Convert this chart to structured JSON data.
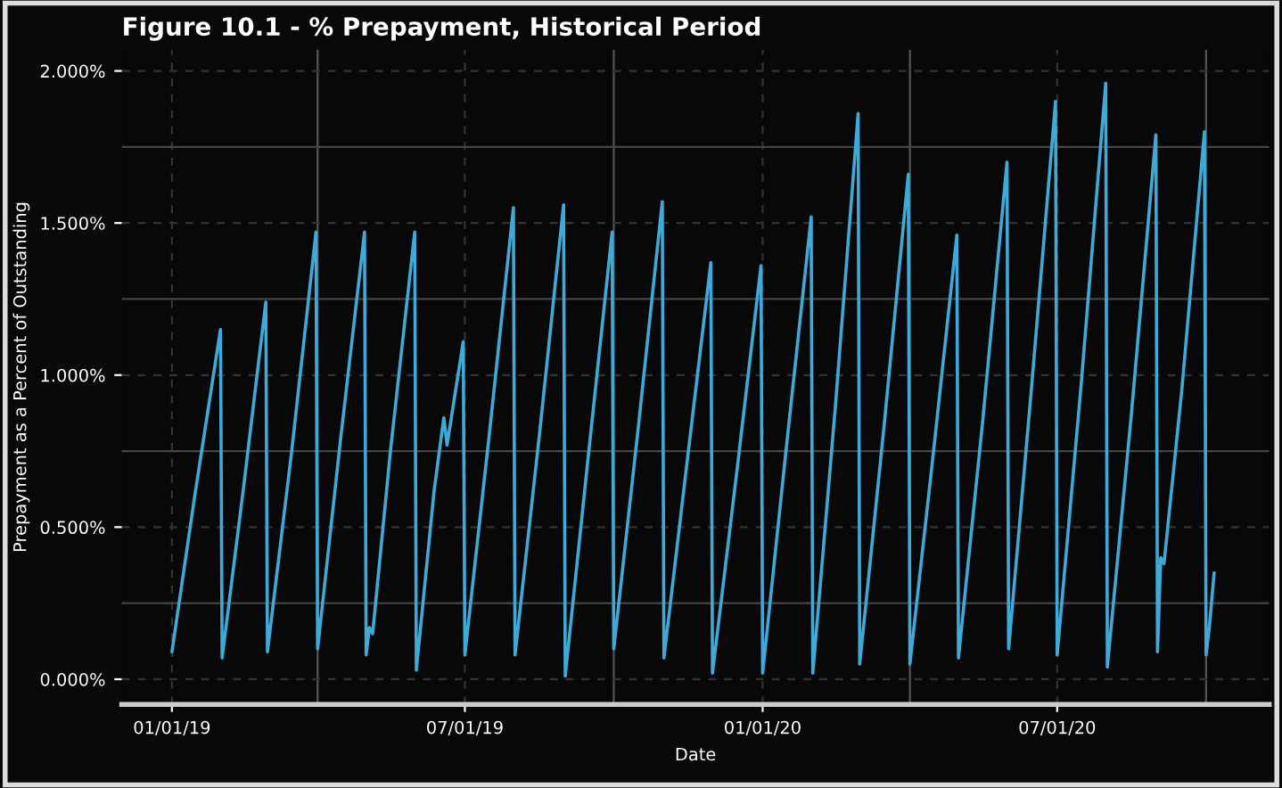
{
  "chart_data": {
    "type": "line",
    "title": "Figure 10.1 - % Prepayment, Historical Period",
    "xlabel": "Date",
    "ylabel": "Prepayment as a Percent of Outstanding",
    "series": [
      {
        "color": "#3fa9d8",
        "x": [
          "2019-01-01",
          "2019-01-15",
          "2019-01-31",
          "2019-02-01",
          "2019-02-14",
          "2019-02-28",
          "2019-03-01",
          "2019-03-16",
          "2019-03-31",
          "2019-04-01",
          "2019-04-15",
          "2019-04-30",
          "2019-05-01",
          "2019-05-03",
          "2019-05-05",
          "2019-05-16",
          "2019-05-31",
          "2019-06-01",
          "2019-06-12",
          "2019-06-18",
          "2019-06-20",
          "2019-06-30",
          "2019-07-01",
          "2019-07-16",
          "2019-07-31",
          "2019-08-01",
          "2019-08-16",
          "2019-08-31",
          "2019-09-01",
          "2019-09-15",
          "2019-09-30",
          "2019-10-01",
          "2019-10-16",
          "2019-10-31",
          "2019-11-01",
          "2019-11-15",
          "2019-11-30",
          "2019-12-01",
          "2019-12-16",
          "2019-12-31",
          "2020-01-01",
          "2020-01-16",
          "2020-01-31",
          "2020-02-01",
          "2020-02-15",
          "2020-02-29",
          "2020-03-01",
          "2020-03-16",
          "2020-03-31",
          "2020-04-01",
          "2020-04-15",
          "2020-04-30",
          "2020-05-01",
          "2020-05-16",
          "2020-05-31",
          "2020-06-01",
          "2020-06-15",
          "2020-06-30",
          "2020-07-01",
          "2020-07-16",
          "2020-07-31",
          "2020-08-01",
          "2020-08-16",
          "2020-08-31",
          "2020-09-01",
          "2020-09-03",
          "2020-09-05",
          "2020-09-16",
          "2020-09-30",
          "2020-10-01",
          "2020-10-03",
          "2020-10-06"
        ],
        "values": [
          0.09,
          0.6,
          1.15,
          0.07,
          0.62,
          1.24,
          0.09,
          0.75,
          1.47,
          0.1,
          0.78,
          1.47,
          0.08,
          0.17,
          0.15,
          0.75,
          1.47,
          0.03,
          0.62,
          0.86,
          0.77,
          1.11,
          0.08,
          0.8,
          1.55,
          0.08,
          0.8,
          1.56,
          0.01,
          0.72,
          1.47,
          0.1,
          0.82,
          1.57,
          0.07,
          0.7,
          1.37,
          0.02,
          0.68,
          1.36,
          0.02,
          0.78,
          1.52,
          0.02,
          0.9,
          1.86,
          0.05,
          0.83,
          1.66,
          0.05,
          0.72,
          1.46,
          0.07,
          0.85,
          1.7,
          0.1,
          0.95,
          1.9,
          0.08,
          0.98,
          1.96,
          0.04,
          0.88,
          1.79,
          0.09,
          0.4,
          0.38,
          0.95,
          1.8,
          0.08,
          0.17,
          0.35
        ]
      }
    ],
    "xlim": [
      "2018-12-01",
      "2020-11-09"
    ],
    "xticks": [
      {
        "value": "2019-01-01",
        "label": "01/01/19"
      },
      {
        "value": "2019-04-01",
        "label": null
      },
      {
        "value": "2019-07-01",
        "label": "07/01/19"
      },
      {
        "value": "2019-10-01",
        "label": null
      },
      {
        "value": "2020-01-01",
        "label": "01/01/20"
      },
      {
        "value": "2020-04-01",
        "label": null
      },
      {
        "value": "2020-07-01",
        "label": "07/01/20"
      },
      {
        "value": "2020-10-01",
        "label": null
      }
    ],
    "ylim": [
      -0.083,
      2.07
    ],
    "yticks": [
      {
        "value": 0,
        "label": "0.000%"
      },
      {
        "value": 0.25,
        "label": null
      },
      {
        "value": 0.5,
        "label": "0.500%"
      },
      {
        "value": 0.75,
        "label": null
      },
      {
        "value": 1,
        "label": "1.000%"
      },
      {
        "value": 1.25,
        "label": null
      },
      {
        "value": 1.5,
        "label": "1.500%"
      },
      {
        "value": 1.75,
        "label": null
      },
      {
        "value": 2,
        "label": "2.000%"
      }
    ],
    "grid": true,
    "marker": "none",
    "line_style": "solid"
  }
}
